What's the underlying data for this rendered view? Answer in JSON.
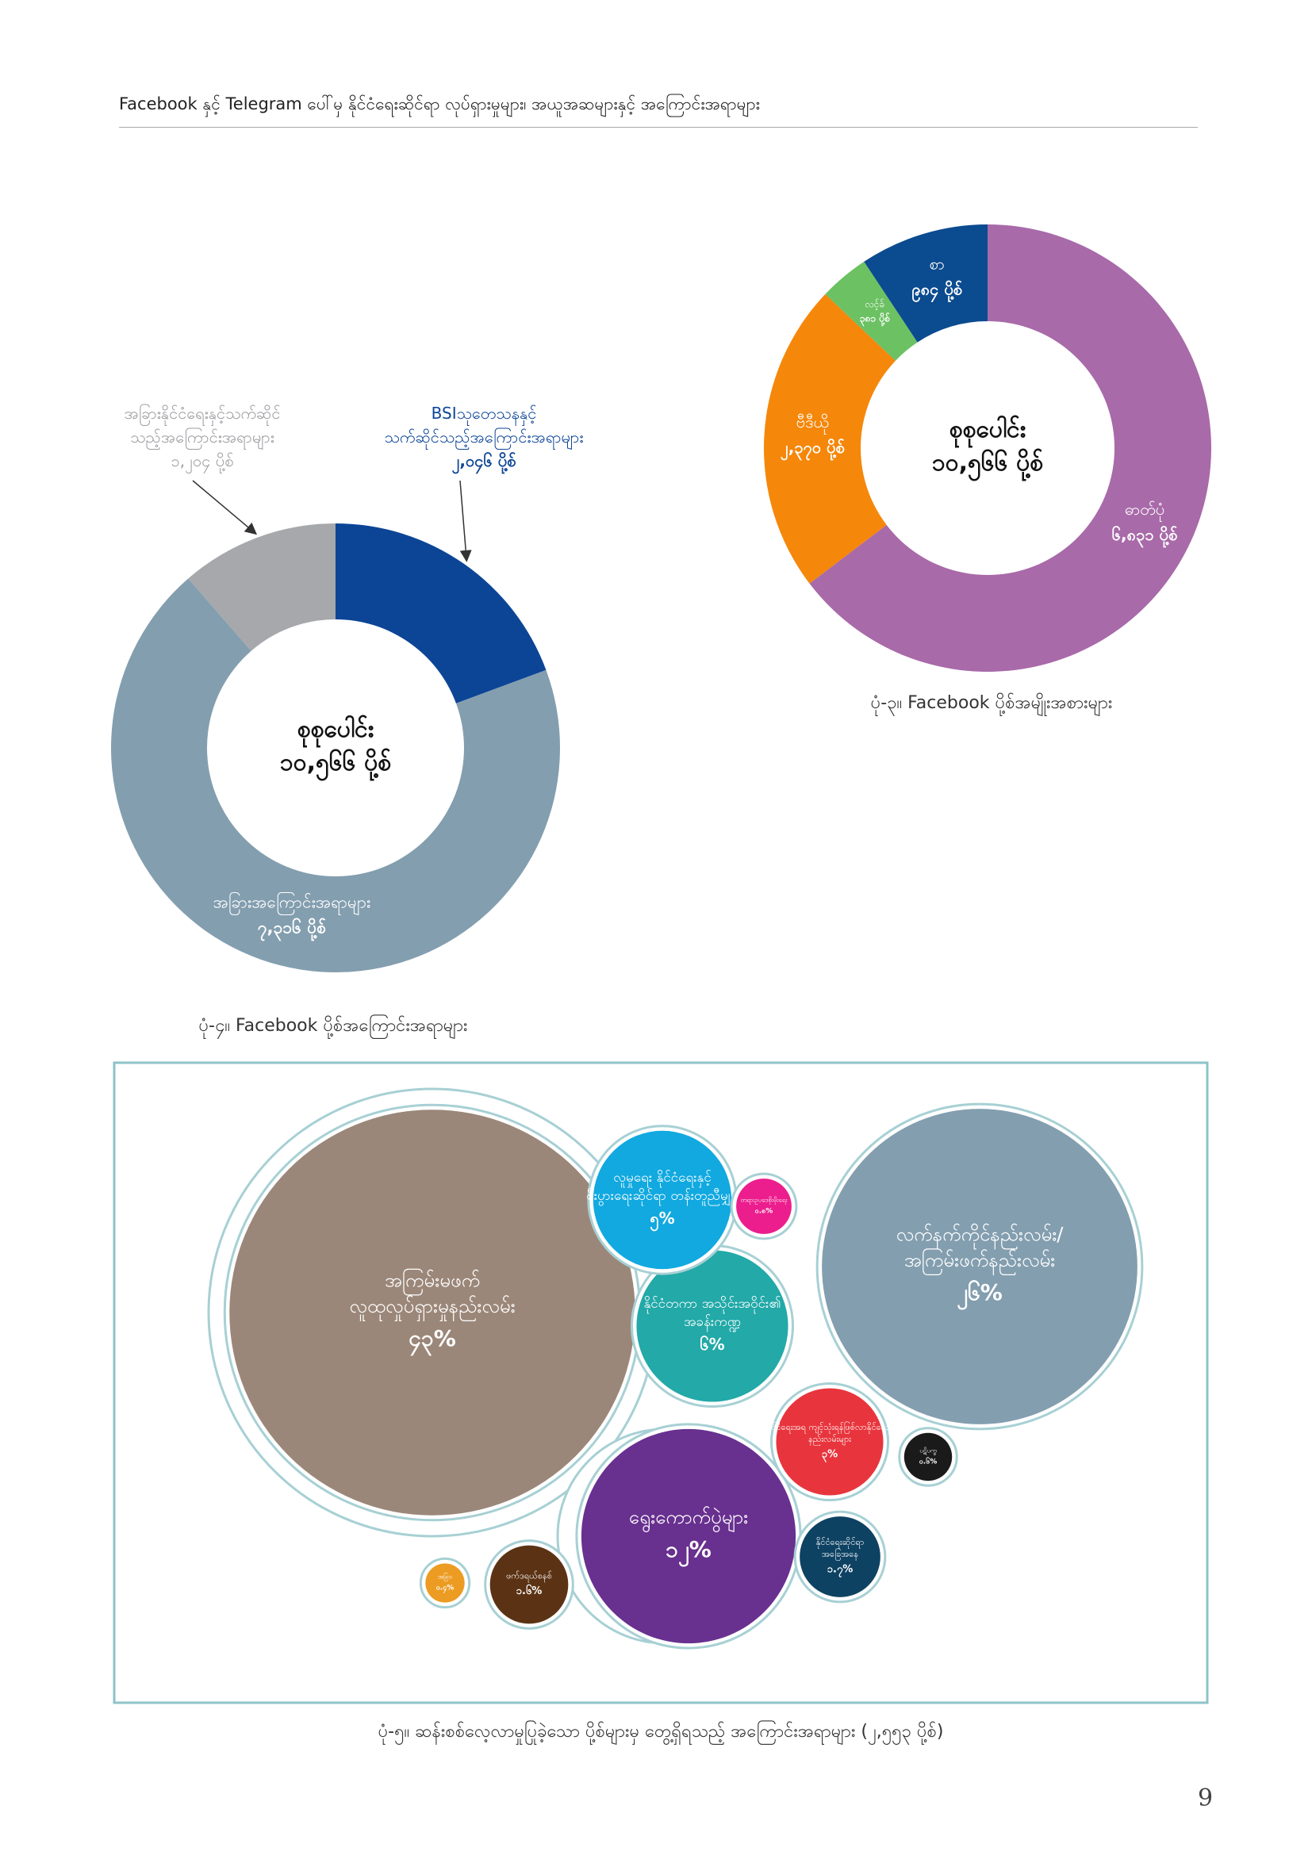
{
  "header": {
    "text": "Facebook နှင့် Telegram ပေါ်မှ နိုင်ငံရေးဆိုင်ရာ လုပ်ရှားမှုများ၊ အယူအဆများနှင့် အကြောင်းအရာများ"
  },
  "page_number": "9",
  "chart_data": [
    {
      "id": "fb-post-topics",
      "type": "pie",
      "caption": "ပုံ-၄။ Facebook ပို့စ်အကြောင်းအရာများ",
      "center_label": "စုစုပေါင်း",
      "center_value": "၁၀,၅၆၆ ပို့စ်",
      "total": 10566,
      "slices": [
        {
          "label": "BSIသုတေသနနှင့် သက်ဆိုင်သည့်အကြောင်းအရာများ",
          "value": 2046,
          "value_text": "၂,၀၄၆ ပို့စ်",
          "color": "#0c4596"
        },
        {
          "label": "အခြားအကြောင်းအရာများ",
          "value": 7316,
          "value_text": "၇,၃၁၆ ပို့စ်",
          "color": "#839eaf"
        },
        {
          "label": "အခြားနိုင်ငံရေးနှင့်သက်ဆိုင် သည့်အကြောင်းအရာများ",
          "value": 1204,
          "value_text": "၁,၂၀၄ ပို့စ်",
          "color": "#a6a8ab"
        }
      ]
    },
    {
      "id": "fb-post-types",
      "type": "pie",
      "caption": "ပုံ-၃။ Facebook ပို့စ်အမျိုးအစားများ",
      "center_label": "စုစုပေါင်း",
      "center_value": "၁၀,၅၆၆ ပို့စ်",
      "total": 10566,
      "slices": [
        {
          "label": "ဓာတ်ပုံ",
          "value": 6831,
          "value_text": "၆,၈၃၁ ပို့စ်",
          "color": "#a86aa9"
        },
        {
          "label": "ဗီဒီယို",
          "value": 2370,
          "value_text": "၂,၃၇၀ ပို့စ်",
          "color": "#f5870a"
        },
        {
          "label": "လင့်ခ်",
          "value": 381,
          "value_text": "၃၈၁ ပို့စ်",
          "color": "#6cc163"
        },
        {
          "label": "စာ",
          "value": 984,
          "value_text": "၉၈၄ ပို့စ်",
          "color": "#0b4b8f"
        }
      ]
    },
    {
      "id": "bsi-topics",
      "type": "bubble",
      "caption": "ပုံ-၅။ ဆန်းစစ်လေ့လာမှုပြုခဲ့သော ပို့စ်များမှ တွေ့ရှိရသည့် အကြောင်းအရာများ (၂,၅၅၃ ပို့စ်)",
      "total": 2553,
      "units": "%",
      "bubbles": [
        {
          "label": "အကြမ်းမဖက် လူထုလှုပ်ရှားမှုနည်းလမ်း",
          "value": 43,
          "value_text": "၄၃%",
          "color": "#9b8779"
        },
        {
          "label": "လက်နက်ကိုင်နည်းလမ်း/ အကြမ်းဖက်နည်းလမ်း",
          "value": 26,
          "value_text": "၂၆%",
          "color": "#839eaf"
        },
        {
          "label": "ရွေးကောက်ပွဲများ",
          "value": 12,
          "value_text": "၁၂%",
          "color": "#68308f"
        },
        {
          "label": "နိုင်ငံတကာ အသိုင်းအဝိုင်း၏ အခန်းကဏ္ဍ",
          "value": 6,
          "value_text": "၆%",
          "color": "#22a9a8"
        },
        {
          "label": "လူမှုရေး နိုင်ငံရေးနှင့် စီးပွားရေးဆိုင်ရာ တန်းတူညီမျှမှု",
          "value": 5,
          "value_text": "၅%",
          "color": "#11a9e0"
        },
        {
          "label": "နိုင်ငံရေးအရ ကျင့်သုံးရန်ဖြစ်လာနိုင်သော နည်းလမ်းများ",
          "value": 3,
          "value_text": "၃%",
          "color": "#e8353d"
        },
        {
          "label": "နိုင်ငံရေးဆိုင်ရာ အခြေအနေ",
          "value": 1.7,
          "value_text": "၁.၇%",
          "color": "#0e4263"
        },
        {
          "label": "ဖက်ဒရယ်စနစ်",
          "value": 1.6,
          "value_text": "၁.၆%",
          "color": "#5b3314"
        },
        {
          "label": "တရားဥပဒေစိုးမိုးရေး",
          "value": 0.8,
          "value_text": "၀.၈%",
          "color": "#ec1e8d"
        },
        {
          "label": "ပဋိပက္ခ",
          "value": 0.6,
          "value_text": "၀.၆%",
          "color": "#1a1a1a"
        },
        {
          "label": "အခြား",
          "value": 0.4,
          "value_text": "၀.၄%",
          "color": "#ec9c22"
        }
      ]
    }
  ]
}
